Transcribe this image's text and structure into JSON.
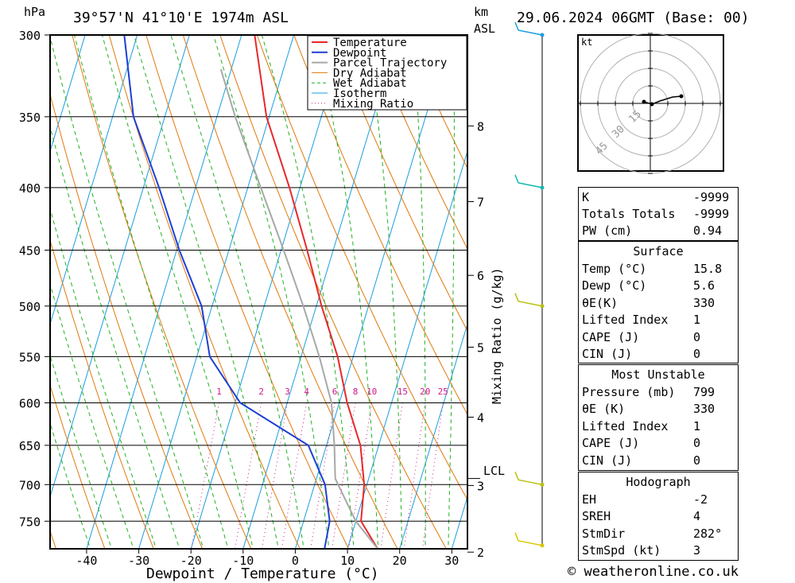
{
  "header": {
    "location": "39°57'N  41°10'E  1974m  ASL",
    "datetime": "29.06.2024  06GMT  (Base: 00)",
    "pressure_unit": "hPa",
    "height_unit_1": "km",
    "height_unit_2": "ASL"
  },
  "chart_data": {
    "type": "line",
    "subtype": "skew-T log-P diagram",
    "xlabel": "Dewpoint / Temperature (°C)",
    "ylabel": "hPa",
    "y_scale": "log",
    "ylim": [
      300,
      790
    ],
    "xlim_at_bottom": [
      -47,
      33
    ],
    "x_ticks": [
      -40,
      -30,
      -20,
      -10,
      0,
      10,
      20,
      30
    ],
    "pressure_ticks": [
      300,
      350,
      400,
      450,
      500,
      550,
      600,
      650,
      700,
      750
    ],
    "height_ticks_km": [
      2,
      3,
      4,
      5,
      6,
      7,
      8
    ],
    "lcl_label": "LCL",
    "lcl_pressure": 692,
    "mixing_ratio_axis_label": "Mixing Ratio (g/kg)",
    "mixing_ratio_values": [
      1,
      2,
      3,
      4,
      6,
      8,
      10,
      15,
      20,
      25
    ],
    "legend": [
      {
        "name": "Temperature",
        "color": "#e8282a"
      },
      {
        "name": "Dewpoint",
        "color": "#1d3fd6"
      },
      {
        "name": "Parcel Trajectory",
        "color": "#a8a8a8"
      },
      {
        "name": "Dry Adiabat",
        "color": "#e0780c"
      },
      {
        "name": "Wet Adiabat",
        "color": "#22b022"
      },
      {
        "name": "Isotherm",
        "color": "#1a9ee0"
      },
      {
        "name": "Mixing Ratio",
        "color": "#d0188a"
      }
    ],
    "series": [
      {
        "name": "Temperature",
        "points": [
          [
            790,
            15.8
          ],
          [
            750,
            11.0
          ],
          [
            700,
            9.5
          ],
          [
            650,
            6.5
          ],
          [
            600,
            1.5
          ],
          [
            550,
            -3.0
          ],
          [
            500,
            -9.0
          ],
          [
            450,
            -15.0
          ],
          [
            400,
            -22.0
          ],
          [
            350,
            -30.5
          ],
          [
            300,
            -37.5
          ]
        ]
      },
      {
        "name": "Dewpoint",
        "points": [
          [
            790,
            5.6
          ],
          [
            750,
            5.0
          ],
          [
            700,
            2.0
          ],
          [
            650,
            -3.5
          ],
          [
            600,
            -19.0
          ],
          [
            550,
            -27.5
          ],
          [
            500,
            -32.0
          ],
          [
            450,
            -39.5
          ],
          [
            400,
            -47.0
          ],
          [
            350,
            -56.0
          ],
          [
            300,
            -62.5
          ]
        ]
      },
      {
        "name": "Parcel Trajectory",
        "points": [
          [
            790,
            15.8
          ],
          [
            750,
            10.0
          ],
          [
            700,
            4.5
          ],
          [
            692,
            3.6
          ],
          [
            650,
            1.5
          ],
          [
            600,
            -1.5
          ],
          [
            550,
            -6.5
          ],
          [
            500,
            -12.5
          ],
          [
            450,
            -19.5
          ],
          [
            400,
            -27.5
          ],
          [
            350,
            -36.5
          ],
          [
            320,
            -42.0
          ]
        ]
      }
    ],
    "wind_profile": [
      {
        "pressure": 300,
        "color": "#1a9ee0"
      },
      {
        "pressure": 400,
        "color": "#10b8b0"
      },
      {
        "pressure": 500,
        "color": "#b8c010"
      },
      {
        "pressure": 700,
        "color": "#b8c010"
      },
      {
        "pressure": 785,
        "color": "#d8c800"
      }
    ]
  },
  "hodograph": {
    "unit_label": "kt",
    "ring_labels": [
      "15",
      "30",
      "45"
    ]
  },
  "indices_panel": {
    "rows": [
      {
        "label": "K",
        "value": "-9999"
      },
      {
        "label": "Totals Totals",
        "value": "-9999"
      },
      {
        "label": "PW (cm)",
        "value": "0.94"
      }
    ]
  },
  "surface_panel": {
    "title": "Surface",
    "rows": [
      {
        "label": "Temp (°C)",
        "value": "15.8"
      },
      {
        "label": "Dewp (°C)",
        "value": "5.6"
      },
      {
        "label": "θE(K)",
        "value": "330"
      },
      {
        "label": "Lifted Index",
        "value": "1"
      },
      {
        "label": "CAPE (J)",
        "value": "0"
      },
      {
        "label": "CIN (J)",
        "value": "0"
      }
    ]
  },
  "most_unstable_panel": {
    "title": "Most Unstable",
    "rows": [
      {
        "label": "Pressure (mb)",
        "value": "799"
      },
      {
        "label": "θE (K)",
        "value": "330"
      },
      {
        "label": "Lifted Index",
        "value": "1"
      },
      {
        "label": "CAPE (J)",
        "value": "0"
      },
      {
        "label": "CIN (J)",
        "value": "0"
      }
    ]
  },
  "hodograph_panel": {
    "title": "Hodograph",
    "rows": [
      {
        "label": "EH",
        "value": "-2"
      },
      {
        "label": "SREH",
        "value": "4"
      },
      {
        "label": "StmDir",
        "value": "282°"
      },
      {
        "label": "StmSpd (kt)",
        "value": "3"
      }
    ]
  },
  "footer": {
    "copyright": "© weatheronline.co.uk"
  }
}
